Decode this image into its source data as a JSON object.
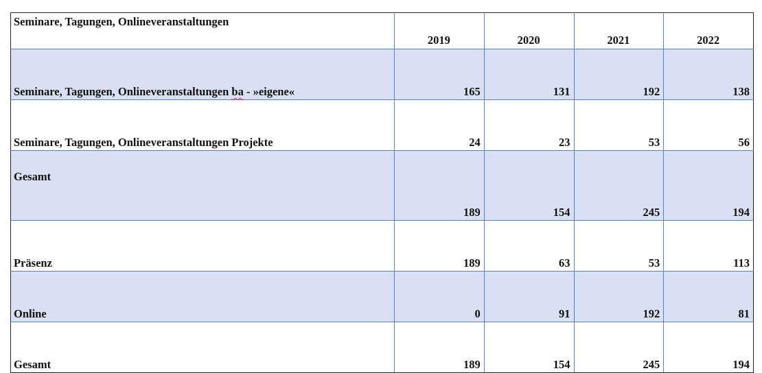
{
  "table": {
    "title": "Seminare, Tagungen, Onlineveranstaltungen",
    "years": [
      "2019",
      "2020",
      "2021",
      "2022"
    ],
    "rows": [
      {
        "label_pre": "Seminare, Tagungen, Onlineveranstaltungen ",
        "label_flagged": "ba",
        "label_post": " - »eigene«",
        "values": [
          "165",
          "131",
          "192",
          "138"
        ]
      },
      {
        "label": "Seminare, Tagungen, Onlineveranstaltungen Projekte",
        "values": [
          "24",
          "23",
          "53",
          "56"
        ]
      },
      {
        "label": "Gesamt",
        "values": [
          "189",
          "154",
          "245",
          "194"
        ]
      },
      {
        "label": "Präsenz",
        "values": [
          "189",
          "63",
          "53",
          "113"
        ]
      },
      {
        "label": "Online",
        "values": [
          "0",
          "91",
          "192",
          "81"
        ]
      },
      {
        "label": "Gesamt",
        "values": [
          "189",
          "154",
          "245",
          "194"
        ]
      }
    ]
  },
  "colors": {
    "shaded_row": "#d9e0f3",
    "grid_line": "#5a7fbf",
    "outer_border": "#222222",
    "spellcheck_underline": "#d02020"
  }
}
